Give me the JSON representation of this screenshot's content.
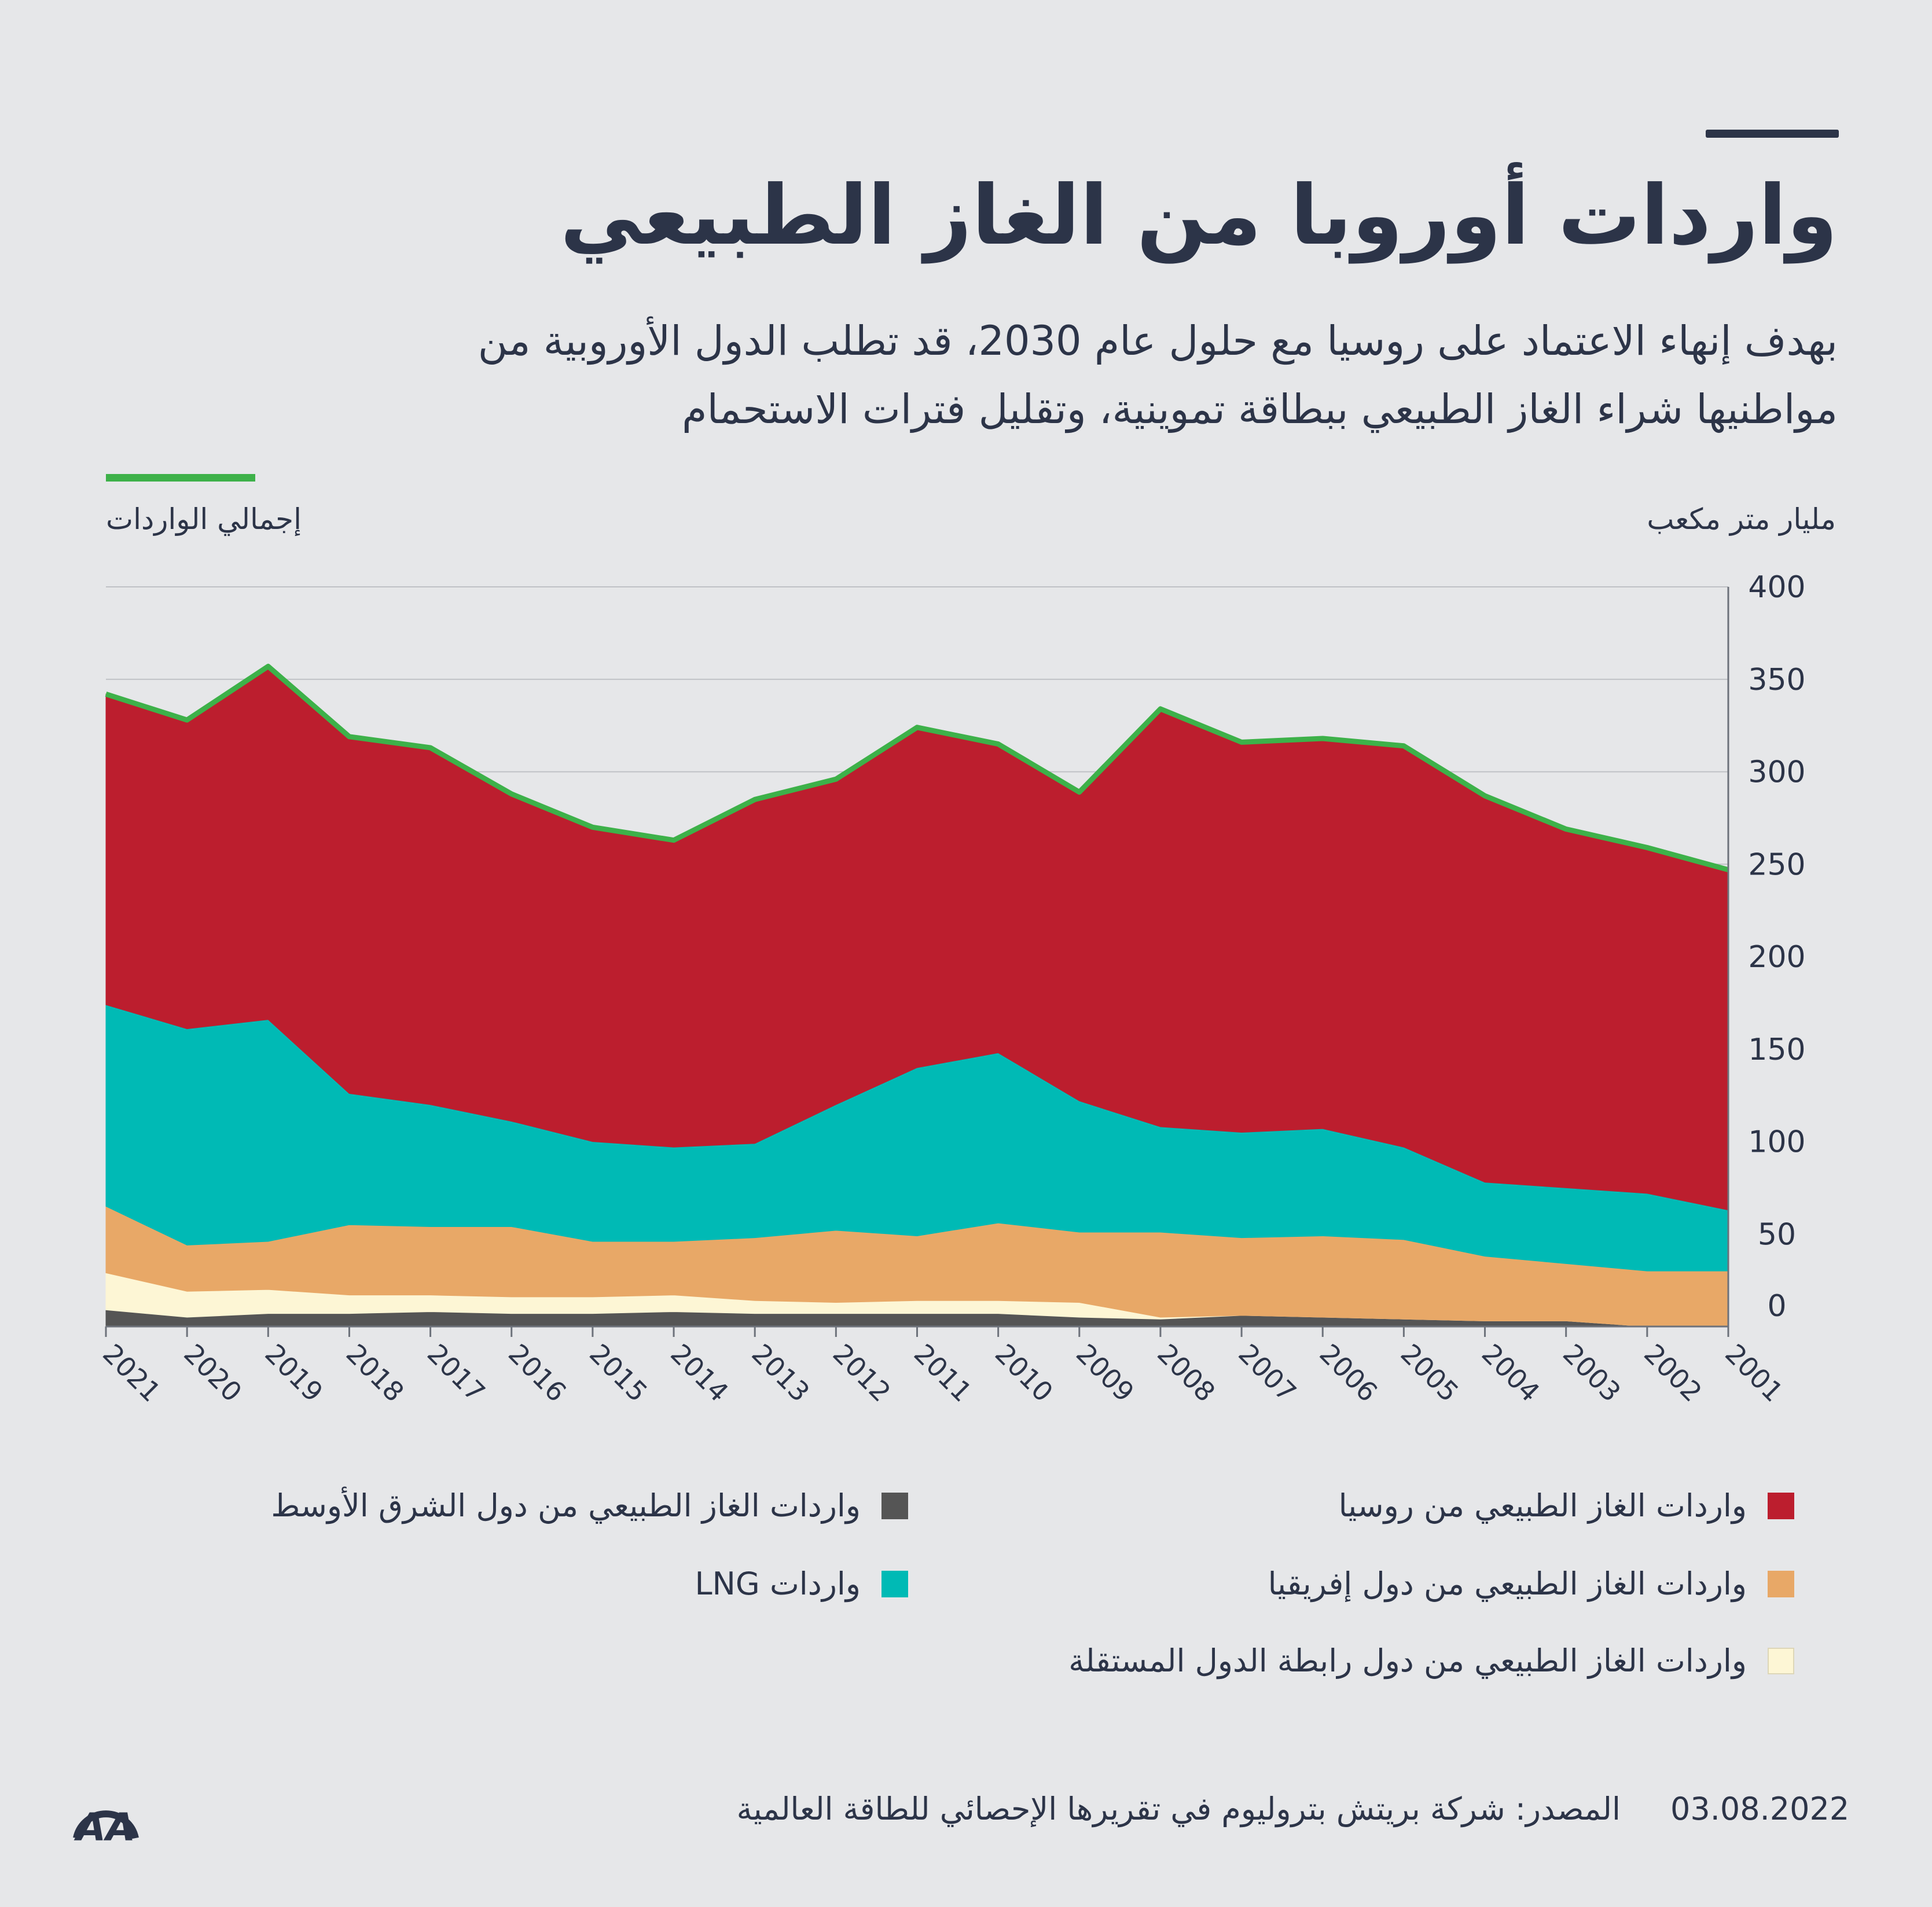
{
  "header": {
    "title": "واردات أوروبا من الغاز الطبيعي",
    "subtitle": "بهدف إنهاء الاعتماد على روسيا مع حلول عام 2030، قد تطلب الدول الأوروبية من مواطنيها شراء الغاز الطبيعي ببطاقة تموينية، وتقليل فترات الاستحمام"
  },
  "labels": {
    "total": "إجمالي الواردات",
    "unit": "مليار متر مكعب"
  },
  "footer": {
    "date": "03.08.2022",
    "source": "المصدر: شركة بريتش بتروليوم في تقريرها الإحصائي للطاقة العالمية",
    "logo_text": "AA"
  },
  "colors": {
    "background": "#e6e7e9",
    "text": "#2c3448",
    "russia": "#bc1e2e",
    "lng": "#00bab5",
    "africa": "#e8a867",
    "cis": "#fdf6d5",
    "middle_east": "#555555",
    "total_line": "#3db149"
  },
  "chart_data": {
    "type": "area",
    "stacked": true,
    "x": [
      "2021",
      "2020",
      "2019",
      "2018",
      "2017",
      "2016",
      "2015",
      "2014",
      "2013",
      "2012",
      "2011",
      "2010",
      "2009",
      "2008",
      "2007",
      "2006",
      "2005",
      "2004",
      "2003",
      "2002",
      "2001"
    ],
    "ylim": [
      0,
      400
    ],
    "yticks": [
      0,
      50,
      100,
      150,
      200,
      250,
      300,
      350,
      400
    ],
    "ylabel": "مليار متر مكعب",
    "grid": true,
    "series": [
      {
        "name": "واردات الغاز الطبيعي من دول الشرق الأوسط",
        "key": "middle_east",
        "values": [
          9,
          5,
          7,
          7,
          8,
          7,
          7,
          8,
          7,
          7,
          7,
          7,
          5,
          4,
          6,
          5,
          4,
          3,
          3,
          0,
          0
        ]
      },
      {
        "name": "واردات الغاز الطبيعي من دول رابطة الدول المستقلة",
        "key": "cis",
        "values": [
          20,
          14,
          13,
          10,
          9,
          9,
          9,
          9,
          7,
          6,
          7,
          7,
          8,
          1,
          0,
          0,
          0,
          0,
          0,
          0,
          0
        ]
      },
      {
        "name": "واردات الغاز الطبيعي من دول إفريقيا",
        "key": "africa",
        "values": [
          36,
          25,
          26,
          38,
          37,
          38,
          30,
          29,
          34,
          39,
          35,
          42,
          38,
          46,
          42,
          44,
          43,
          35,
          31,
          30,
          30
        ]
      },
      {
        "name": "واردات LNG",
        "key": "lng",
        "values": [
          109,
          117,
          120,
          71,
          66,
          57,
          54,
          51,
          51,
          68,
          91,
          92,
          71,
          57,
          57,
          58,
          50,
          40,
          41,
          42,
          33
        ]
      },
      {
        "name": "واردات الغاز الطبيعي من روسيا",
        "key": "russia",
        "values": [
          168,
          167,
          191,
          193,
          193,
          177,
          170,
          166,
          186,
          176,
          184,
          167,
          167,
          226,
          211,
          211,
          217,
          209,
          194,
          187,
          184
        ]
      }
    ],
    "total": {
      "name": "إجمالي الواردات",
      "values": [
        342,
        328,
        357,
        319,
        313,
        288,
        270,
        263,
        285,
        296,
        324,
        315,
        289,
        334,
        316,
        318,
        314,
        287,
        269,
        259,
        247
      ]
    },
    "legend_position": "bottom"
  },
  "legend": [
    {
      "key": "russia",
      "label": "واردات الغاز الطبيعي من روسيا"
    },
    {
      "key": "middle_east",
      "label": "واردات الغاز الطبيعي من دول الشرق الأوسط"
    },
    {
      "key": "africa",
      "label": "واردات الغاز الطبيعي من دول إفريقيا"
    },
    {
      "key": "lng",
      "label": "واردات LNG"
    },
    {
      "key": "cis",
      "label": "واردات الغاز الطبيعي من دول رابطة الدول المستقلة"
    }
  ]
}
